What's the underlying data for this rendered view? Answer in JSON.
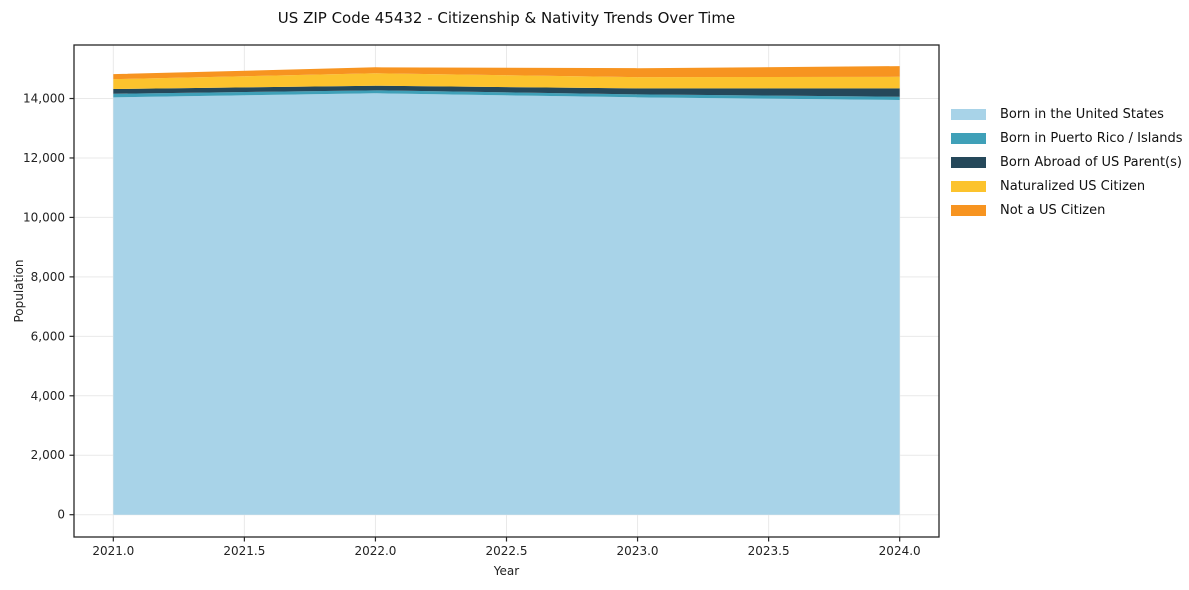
{
  "title": "US ZIP Code 45432 - Citizenship & Nativity Trends Over Time",
  "chart_data": {
    "type": "area",
    "stacked": true,
    "title": "US ZIP Code 45432 - Citizenship & Nativity Trends Over Time",
    "xlabel": "Year",
    "ylabel": "Population",
    "x": [
      2021,
      2022,
      2023,
      2024
    ],
    "series": [
      {
        "name": "Born in the United States",
        "color": "#a8d3e8",
        "values": [
          14040,
          14175,
          14040,
          13950
        ]
      },
      {
        "name": "Born in Puerto Rico / Islands",
        "color": "#3fa0b8",
        "values": [
          120,
          100,
          100,
          110
        ]
      },
      {
        "name": "Born Abroad of US Parent(s)",
        "color": "#25485a",
        "values": [
          160,
          155,
          200,
          280
        ]
      },
      {
        "name": "Naturalized US Citizen",
        "color": "#fcc32d",
        "values": [
          330,
          420,
          380,
          390
        ]
      },
      {
        "name": "Not a US Citizen",
        "color": "#f79420",
        "values": [
          170,
          200,
          300,
          360
        ]
      }
    ],
    "xlim": [
      2020.85,
      2024.15
    ],
    "ylim": [
      -750,
      15800
    ],
    "xticks": [
      2021.0,
      2021.5,
      2022.0,
      2022.5,
      2023.0,
      2023.5,
      2024.0
    ],
    "xtick_labels": [
      "2021.0",
      "2021.5",
      "2022.0",
      "2022.5",
      "2023.0",
      "2023.5",
      "2024.0"
    ],
    "yticks": [
      0,
      2000,
      4000,
      6000,
      8000,
      10000,
      12000,
      14000
    ],
    "ytick_labels": [
      "0",
      "2,000",
      "4,000",
      "6,000",
      "8,000",
      "10,000",
      "12,000",
      "14,000"
    ],
    "grid": true,
    "grid_color": "#e9e9e9",
    "frame_color": "#262626",
    "legend_position": "right"
  }
}
